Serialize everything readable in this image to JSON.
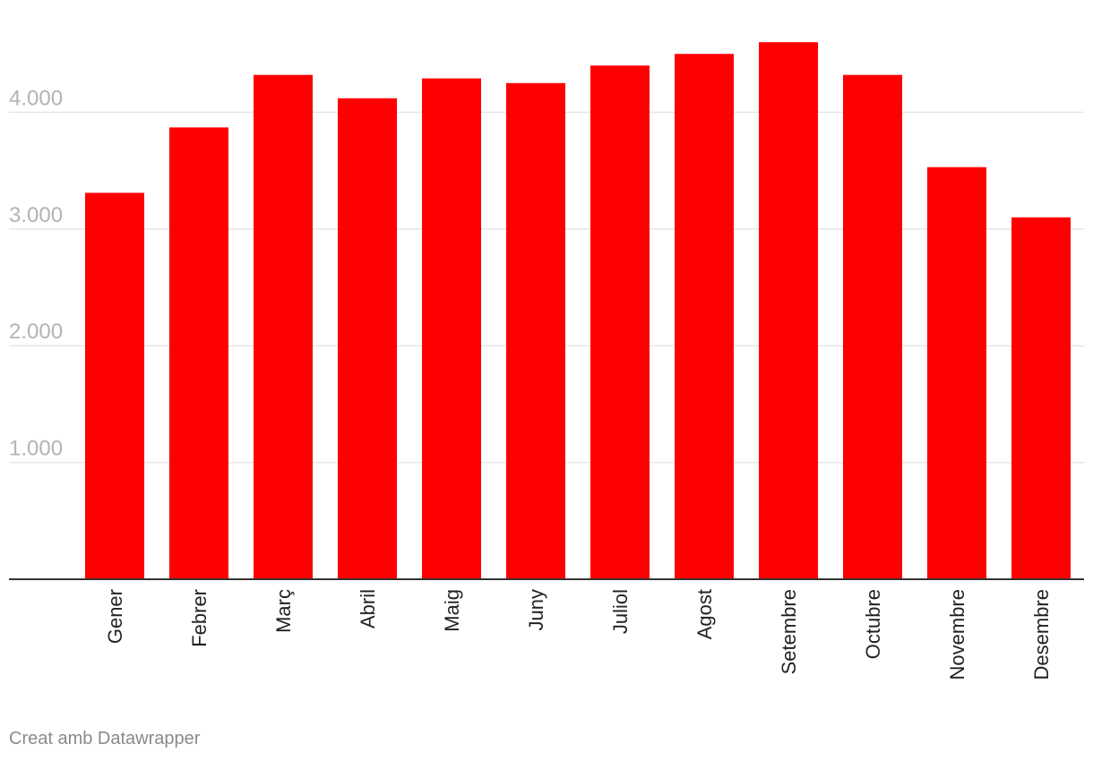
{
  "chart_data": {
    "type": "bar",
    "categories": [
      "Gener",
      "Febrer",
      "Març",
      "Abril",
      "Maig",
      "Juny",
      "Juliol",
      "Agost",
      "Setembre",
      "Octubre",
      "Novembre",
      "Desembre"
    ],
    "values": [
      3310,
      3870,
      4320,
      4120,
      4290,
      4250,
      4400,
      4500,
      4600,
      4320,
      3530,
      3100
    ],
    "yticks": [
      1000,
      2000,
      3000,
      4000
    ],
    "ytick_labels": [
      "1.000",
      "2.000",
      "3.000",
      "4.000"
    ],
    "ylim": [
      0,
      4600
    ],
    "grid": true,
    "bar_color": "#ff0000",
    "grid_color": "#e6e6e6",
    "baseline_color": "#333333",
    "title": "",
    "xlabel": "",
    "ylabel": ""
  },
  "footer": {
    "credit": "Creat amb Datawrapper"
  }
}
